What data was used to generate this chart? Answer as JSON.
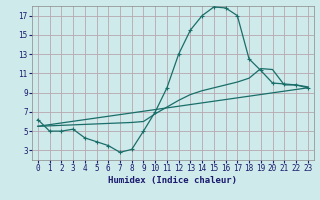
{
  "xlabel": "Humidex (Indice chaleur)",
  "bg_color": "#ceeaea",
  "grid_color": "#b8a8b0",
  "line_color": "#1a6e6a",
  "xlim": [
    -0.5,
    23.5
  ],
  "ylim": [
    2,
    18
  ],
  "xticks": [
    0,
    1,
    2,
    3,
    4,
    5,
    6,
    7,
    8,
    9,
    10,
    11,
    12,
    13,
    14,
    15,
    16,
    17,
    18,
    19,
    20,
    21,
    22,
    23
  ],
  "yticks": [
    3,
    5,
    7,
    9,
    11,
    13,
    15,
    17
  ],
  "line1_x": [
    0,
    1,
    2,
    3,
    4,
    5,
    6,
    7,
    8,
    9,
    10,
    11,
    12,
    13,
    14,
    15,
    16,
    17,
    18,
    19,
    20,
    21,
    22,
    23
  ],
  "line1_y": [
    6.2,
    5.0,
    5.0,
    5.2,
    4.3,
    3.9,
    3.5,
    2.8,
    3.1,
    5.0,
    7.0,
    9.5,
    13.0,
    15.5,
    17.0,
    17.9,
    17.8,
    17.0,
    12.5,
    11.3,
    10.0,
    9.9,
    9.8,
    9.5
  ],
  "line2_x": [
    0,
    1,
    2,
    3,
    4,
    5,
    6,
    7,
    8,
    9,
    10,
    11,
    12,
    13,
    14,
    15,
    16,
    17,
    18,
    19,
    20,
    21,
    22,
    23
  ],
  "line2_y": [
    5.5,
    5.55,
    5.6,
    5.65,
    5.7,
    5.75,
    5.8,
    5.85,
    5.9,
    6.0,
    6.8,
    7.5,
    8.2,
    8.8,
    9.2,
    9.5,
    9.8,
    10.1,
    10.5,
    11.5,
    11.4,
    9.8,
    9.8,
    9.6
  ],
  "line3_x": [
    0,
    23
  ],
  "line3_y": [
    5.5,
    9.5
  ]
}
